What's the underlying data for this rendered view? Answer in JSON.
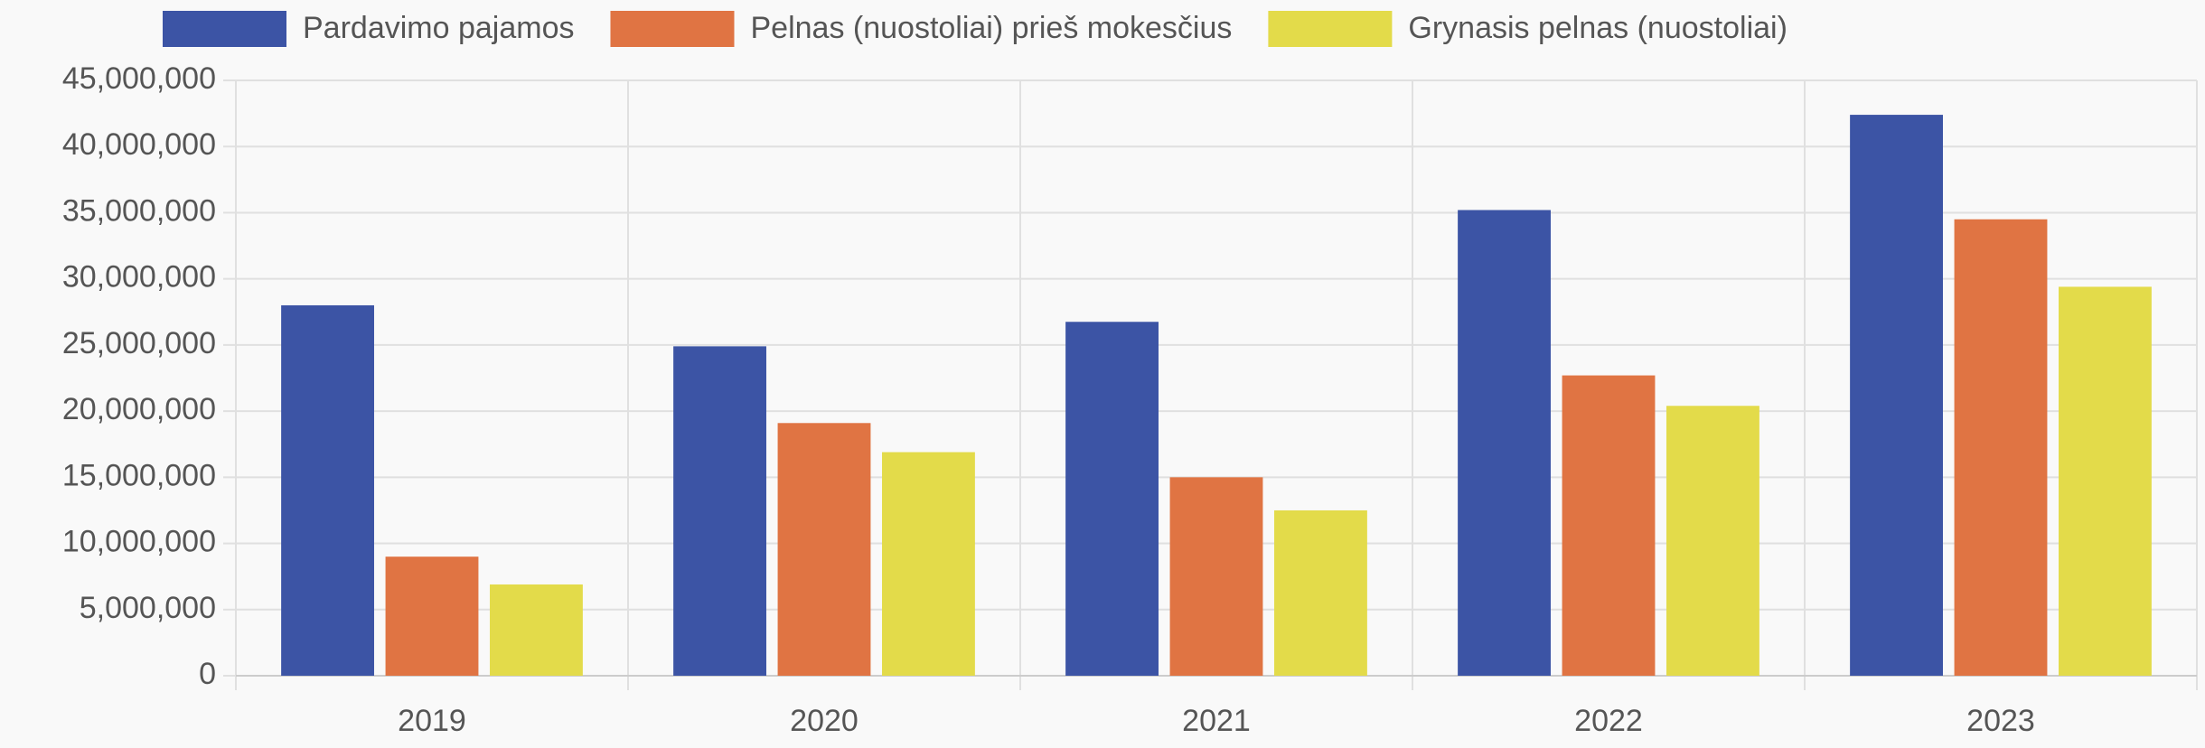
{
  "chart_data": {
    "type": "bar",
    "categories": [
      "2019",
      "2020",
      "2021",
      "2022",
      "2023"
    ],
    "series": [
      {
        "name": "Pardavimo pajamos",
        "color": "#3c54a5",
        "values": [
          28000000,
          24900000,
          26750000,
          35200000,
          42400000
        ]
      },
      {
        "name": "Pelnas (nuostoliai) prieš mokesčius",
        "color": "#e07443",
        "values": [
          9000000,
          19100000,
          15000000,
          22700000,
          34500000
        ]
      },
      {
        "name": "Grynasis pelnas (nuostoliai)",
        "color": "#e3db4a",
        "values": [
          6900000,
          16900000,
          12500000,
          20400000,
          29400000
        ]
      }
    ],
    "ylim": [
      0,
      45000000
    ],
    "yticks": [
      0,
      {
        "value": 5000000,
        "label": "5,000,000"
      },
      {
        "value": 10000000,
        "label": "10,000,000"
      },
      {
        "value": 15000000,
        "label": "15,000,000"
      },
      {
        "value": 20000000,
        "label": "20,000,000"
      },
      {
        "value": 25000000,
        "label": "25,000,000"
      },
      {
        "value": 30000000,
        "label": "30,000,000"
      },
      {
        "value": 35000000,
        "label": "35,000,000"
      },
      {
        "value": 40000000,
        "label": "40,000,000"
      },
      {
        "value": 45000000,
        "label": "45,000,000"
      }
    ],
    "grid": true,
    "legend": "top"
  }
}
